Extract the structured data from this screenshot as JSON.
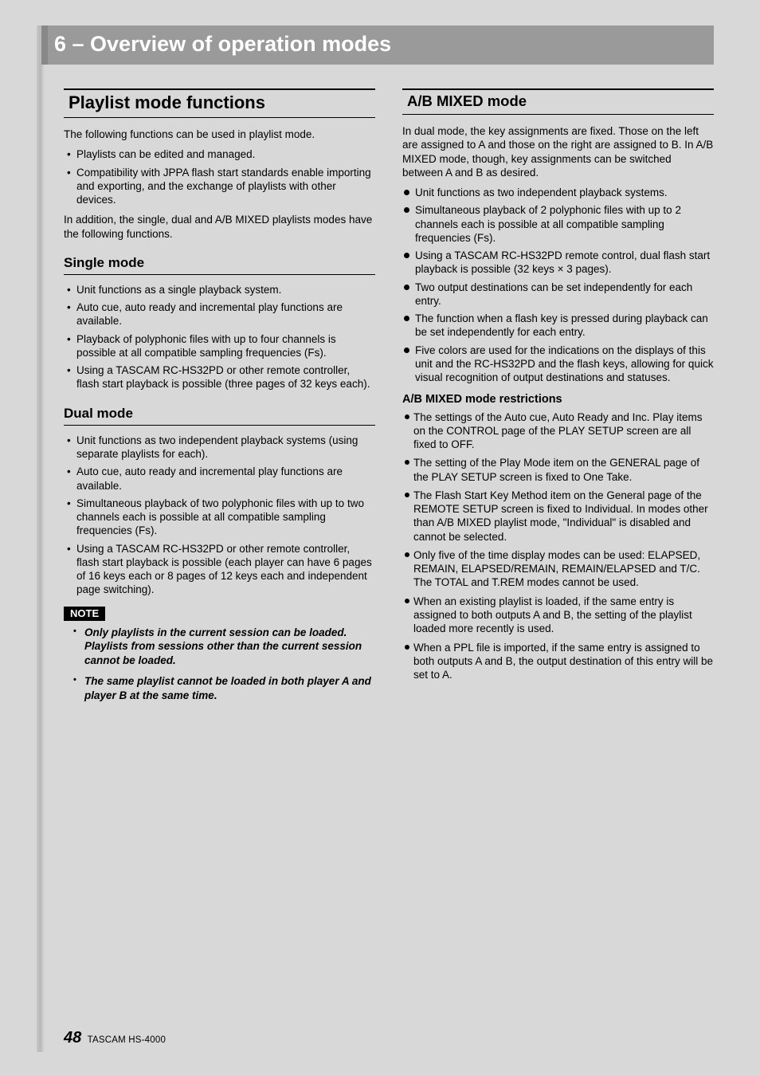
{
  "chapter_title": "6 – Overview of operation modes",
  "left": {
    "h2": "Playlist mode functions",
    "intro": "The following functions can be used in playlist mode.",
    "intro_bullets": [
      "Playlists can be edited and managed.",
      "Compatibility with JPPA flash start standards enable importing and exporting, and the exchange of playlists with other devices."
    ],
    "intro2": "In addition, the single, dual and A/B MIXED playlists modes have the following functions.",
    "single": {
      "heading": "Single mode",
      "items": [
        "Unit functions as a single playback system.",
        "Auto cue, auto ready and incremental play functions are available.",
        "Playback of polyphonic files with up to four channels is possible at all compatible sampling frequencies (Fs).",
        "Using a TASCAM RC-HS32PD or other remote controller, flash start playback is possible (three pages of 32 keys each)."
      ]
    },
    "dual": {
      "heading": "Dual mode",
      "items": [
        "Unit functions as two independent playback systems (using separate playlists for each).",
        "Auto cue, auto ready and incremental play functions are available.",
        "Simultaneous playback of two polyphonic files with up to two channels each is possible at all compatible sampling frequencies (Fs).",
        "Using a TASCAM RC-HS32PD or other remote controller, flash start playback is possible (each player can have 6 pages of 16 keys each or 8 pages of 12 keys each and independent page switching)."
      ]
    },
    "note_label": "NOTE",
    "notes": [
      "Only playlists in the current session can be loaded. Playlists from sessions other than the current session cannot be loaded.",
      "The same playlist cannot be loaded in both player A and player B at the same time."
    ]
  },
  "right": {
    "ab": {
      "heading": "A/B MIXED mode",
      "intro": "In dual mode, the key assignments are fixed. Those on the left are assigned to A and those on the right are assigned to B. In A/B MIXED mode, though, key assignments can be switched between A and B as desired.",
      "items": [
        "Unit functions as two independent playback systems.",
        "Simultaneous playback of 2 polyphonic files with up to 2 channels each is possible at all compatible sampling frequencies (Fs).",
        "Using a TASCAM RC-HS32PD remote control, dual flash start playback is possible (32 keys × 3 pages).",
        "Two output destinations can be set independently for each entry.",
        "The function when a flash key is pressed during playback can be set independently for each entry.",
        "Five colors are used for the indications on the displays of this unit and the RC-HS32PD and the flash keys, allowing for quick visual recognition of output destinations and statuses."
      ],
      "restrictions_heading": "A/B MIXED mode restrictions",
      "restrictions": [
        "The settings of the Auto cue, Auto Ready and Inc. Play items on the CONTROL page of the PLAY SETUP screen are all fixed to OFF.",
        "The setting of the Play Mode item on the GENERAL page of the PLAY SETUP screen is fixed to One Take.",
        "The Flash Start Key Method item on the General page of the REMOTE SETUP screen is fixed to Individual. In modes other than A/B MIXED playlist mode, \"Individual\" is disabled and cannot be selected.",
        "Only five of the time display modes can be used: ELAPSED, REMAIN, ELAPSED/REMAIN, REMAIN/ELAPSED and T/C. The TOTAL and T.REM modes cannot be used.",
        "When an existing playlist is loaded, if the same entry is assigned to both outputs A and B, the setting of the playlist loaded more recently is used.",
        "When a PPL file is imported, if the same entry is assigned to both outputs A and B, the output destination of this entry will be set to A."
      ]
    }
  },
  "footer": {
    "page": "48",
    "model": "TASCAM  HS-4000"
  }
}
